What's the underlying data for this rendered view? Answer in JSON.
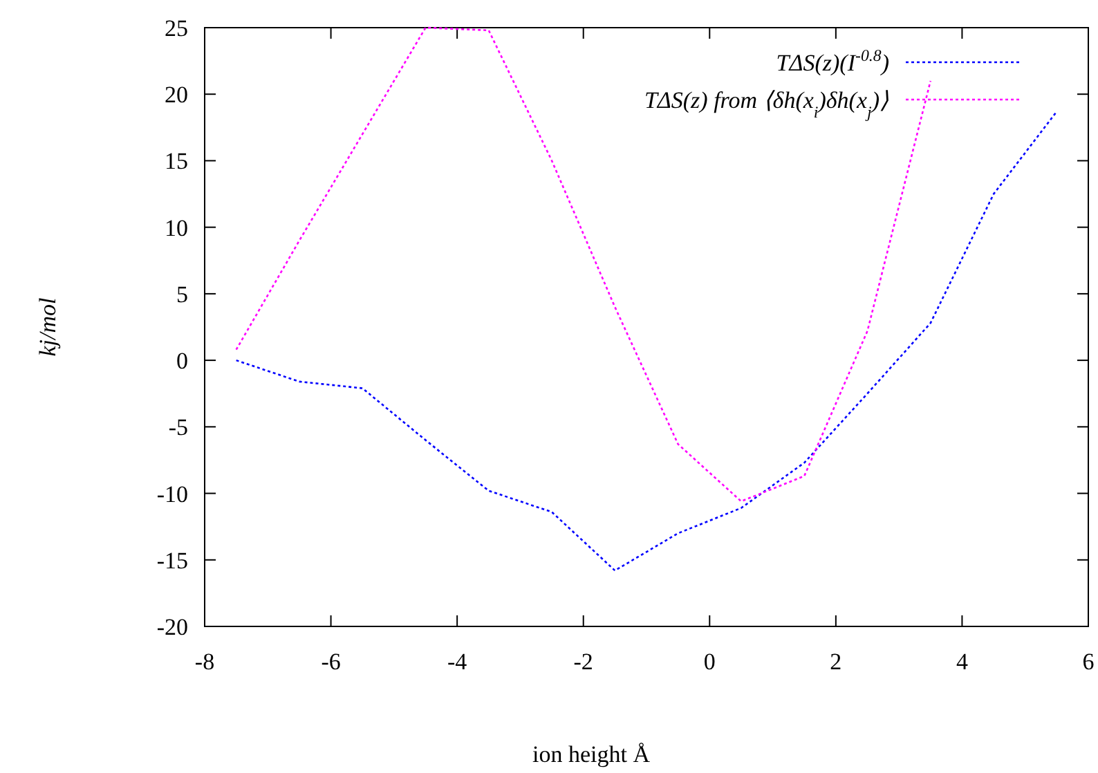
{
  "chart_data": {
    "type": "line",
    "xlabel": "ion height Å",
    "ylabel": "kj/mol",
    "xlim": [
      -8,
      6
    ],
    "xticks": [
      -8,
      -6,
      -4,
      -2,
      0,
      2,
      4,
      6
    ],
    "ylim": [
      -20,
      25
    ],
    "yticks": [
      -20,
      -15,
      -10,
      -5,
      0,
      5,
      10,
      15,
      20,
      25
    ],
    "x": [
      -7.5,
      -6.5,
      -5.5,
      -4.5,
      -3.5,
      -2.5,
      -1.5,
      -0.5,
      0.5,
      1.5,
      2.5,
      3.5,
      4.5,
      5.5
    ],
    "series": [
      {
        "name": "TΔS(z)(I$^{-0.8}$)",
        "color": "#0000ff",
        "values": [
          0,
          -1.6,
          -2.1,
          -6,
          -9.8,
          -11.4,
          -15.8,
          -13,
          -11.1,
          -7.7,
          -2.5,
          2.8,
          12.5,
          18.7
        ]
      },
      {
        "name": "TΔS(z) from ⟨δh(x$_{i}$)δh(x$_{j}$)⟩",
        "color": "#ff00ff",
        "values": [
          0.8,
          9,
          17,
          25,
          24.8,
          15,
          4,
          -6.3,
          -10.6,
          -8.7,
          2.2,
          21,
          null,
          null
        ]
      }
    ],
    "grid": false,
    "legend": "top right",
    "line_style": "dotted",
    "marker": "none"
  }
}
